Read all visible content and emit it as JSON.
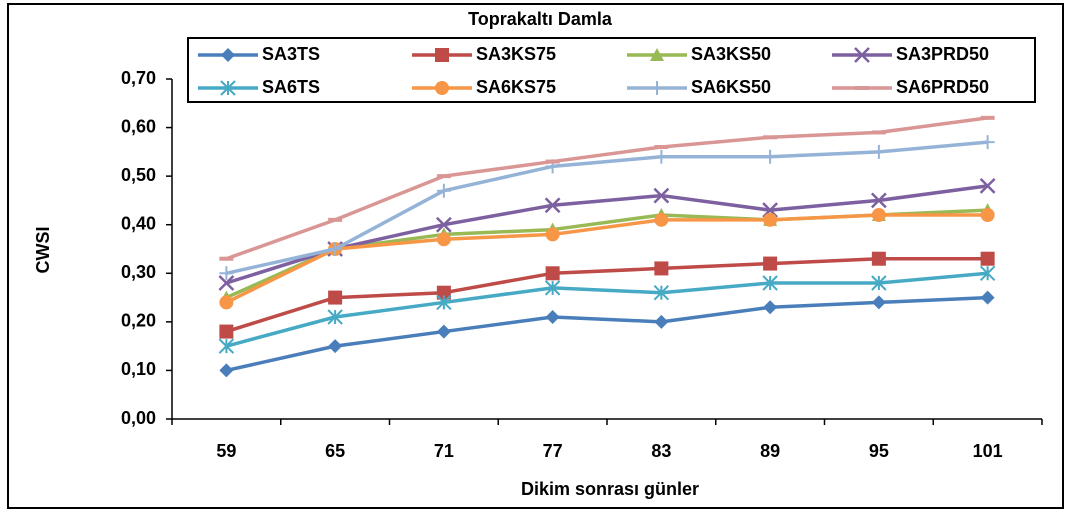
{
  "chart_data": {
    "type": "line",
    "title": "Toprakaltı Damla",
    "x_label": "Dikim sonrası günler",
    "y_label": "CWSI",
    "categories": [
      "59",
      "65",
      "71",
      "77",
      "83",
      "89",
      "95",
      "101"
    ],
    "ylim": [
      0,
      0.7
    ],
    "yticks": [
      {
        "value": 0,
        "label": "0,00"
      },
      {
        "value": 0.1,
        "label": "0,10"
      },
      {
        "value": 0.2,
        "label": "0,20"
      },
      {
        "value": 0.3,
        "label": "0,30"
      },
      {
        "value": 0.4,
        "label": "0,40"
      },
      {
        "value": 0.5,
        "label": "0,50"
      },
      {
        "value": 0.6,
        "label": "0,60"
      },
      {
        "value": 0.7,
        "label": "0,70"
      }
    ],
    "grid": false,
    "legend": "top",
    "series": [
      {
        "name": "SA3TS",
        "color": "#4a7ebb",
        "marker": "diamond",
        "values": [
          0.1,
          0.15,
          0.18,
          0.21,
          0.2,
          0.23,
          0.24,
          0.25
        ]
      },
      {
        "name": "SA3KS75",
        "color": "#be4b48",
        "marker": "square",
        "values": [
          0.18,
          0.25,
          0.26,
          0.3,
          0.31,
          0.32,
          0.33,
          0.33
        ]
      },
      {
        "name": "SA3KS50",
        "color": "#98b954",
        "marker": "triangle",
        "values": [
          0.25,
          0.35,
          0.38,
          0.39,
          0.42,
          0.41,
          0.42,
          0.43
        ]
      },
      {
        "name": "SA3PRD50",
        "color": "#7d60a0",
        "marker": "x",
        "values": [
          0.28,
          0.35,
          0.4,
          0.44,
          0.46,
          0.43,
          0.45,
          0.48
        ]
      },
      {
        "name": "SA6TS",
        "color": "#46aac5",
        "marker": "star",
        "values": [
          0.15,
          0.21,
          0.24,
          0.27,
          0.26,
          0.28,
          0.28,
          0.3
        ]
      },
      {
        "name": "SA6KS75",
        "color": "#f79646",
        "marker": "circle",
        "values": [
          0.24,
          0.35,
          0.37,
          0.38,
          0.41,
          0.41,
          0.42,
          0.42
        ]
      },
      {
        "name": "SA6KS50",
        "color": "#95b3d7",
        "marker": "plus",
        "values": [
          0.3,
          0.35,
          0.47,
          0.52,
          0.54,
          0.54,
          0.55,
          0.57
        ]
      },
      {
        "name": "SA6PRD50",
        "color": "#d99694",
        "marker": "dash",
        "values": [
          0.33,
          0.41,
          0.5,
          0.53,
          0.56,
          0.58,
          0.59,
          0.62
        ]
      }
    ]
  }
}
